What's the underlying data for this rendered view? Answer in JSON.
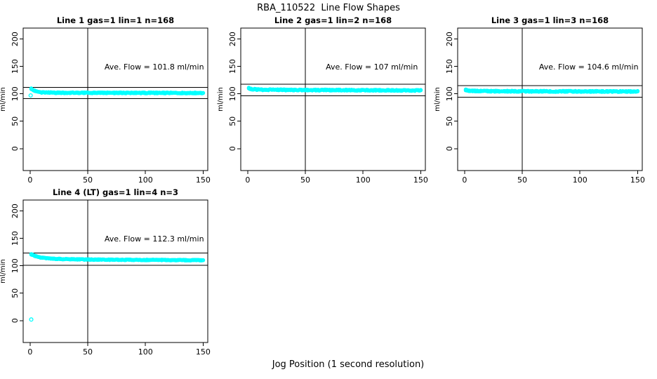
{
  "figure": {
    "title": "RBA_110522  Line Flow Shapes",
    "xlabel": "Jog Position (1 second resolution)",
    "background": "#FFFFFF",
    "axis_color": "#000000",
    "point_color": "#00FFFF"
  },
  "chart_data": {
    "type": "scatter",
    "title": "RBA_110522  Line Flow Shapes",
    "xlabel": "Jog Position (1 second resolution)",
    "ylabel": "ml/min",
    "xlim": [
      -6,
      154
    ],
    "ylim": [
      -40,
      220
    ],
    "xticks": [
      0,
      50,
      100,
      150
    ],
    "yticks": [
      0,
      50,
      100,
      150,
      200
    ],
    "vline_x": 50,
    "grid": false,
    "marker": "open-circle",
    "marker_color": "#00FFFF",
    "subplots": [
      {
        "line": 1,
        "title": "Line 1 gas=1 lin=1 n=168",
        "annotation": "Ave. Flow =  101.8  ml/min",
        "ave_flow_ml_min": 101.8,
        "n": 168,
        "ref_lines": [
          112.0,
          91.6
        ],
        "profile": [
          [
            1,
            109.5
          ],
          [
            2,
            108
          ],
          [
            3,
            106.5
          ],
          [
            5,
            104.5
          ],
          [
            10,
            102.6
          ],
          [
            20,
            102
          ],
          [
            60,
            101.8
          ],
          [
            150,
            101.6
          ]
        ],
        "outliers": [
          [
            0.5,
            97
          ]
        ],
        "jitter": 0.9,
        "x_end": 150
      },
      {
        "line": 2,
        "title": "Line 2 gas=1 lin=2 n=168",
        "annotation": "Ave. Flow =  107  ml/min",
        "ave_flow_ml_min": 107,
        "n": 168,
        "ref_lines": [
          117.7,
          96.3
        ],
        "profile": [
          [
            1,
            110.5
          ],
          [
            2,
            109.5
          ],
          [
            4,
            108.5
          ],
          [
            10,
            107.6
          ],
          [
            25,
            107.2
          ],
          [
            80,
            106.8
          ],
          [
            150,
            106.2
          ]
        ],
        "outliers": [],
        "jitter": 1.0,
        "x_end": 150
      },
      {
        "line": 3,
        "title": "Line 3 gas=1 lin=3 n=168",
        "annotation": "Ave. Flow =  104.6  ml/min",
        "ave_flow_ml_min": 104.6,
        "n": 168,
        "ref_lines": [
          115.1,
          94.1
        ],
        "profile": [
          [
            1,
            107
          ],
          [
            3,
            106
          ],
          [
            8,
            105.3
          ],
          [
            20,
            104.8
          ],
          [
            80,
            104.5
          ],
          [
            150,
            104.2
          ]
        ],
        "outliers": [],
        "jitter": 1.0,
        "x_end": 150
      },
      {
        "line": 4,
        "title": "Line 4 (LT) gas=1 lin=4 n=3",
        "annotation": "Ave. Flow =  112.3  ml/min",
        "ave_flow_ml_min": 112.3,
        "n": 3,
        "ref_lines": [
          123.5,
          101.1
        ],
        "profile": [
          [
            1,
            121
          ],
          [
            2,
            120
          ],
          [
            4,
            118
          ],
          [
            8,
            115.5
          ],
          [
            15,
            113.5
          ],
          [
            30,
            112
          ],
          [
            60,
            111.2
          ],
          [
            100,
            110.7
          ],
          [
            150,
            110.2
          ]
        ],
        "outliers": [
          [
            1,
            2
          ]
        ],
        "jitter": 0.7,
        "x_end": 150
      }
    ]
  }
}
